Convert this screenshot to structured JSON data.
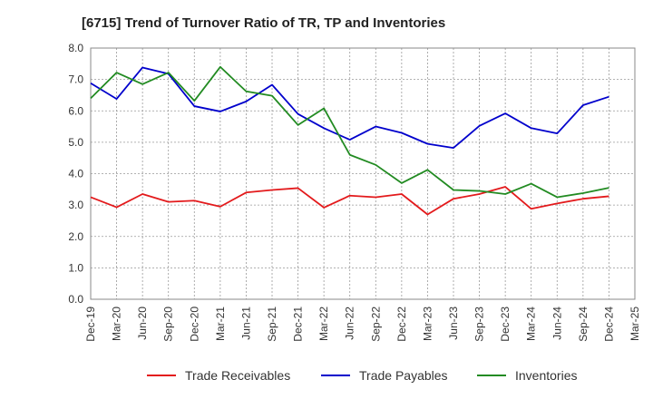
{
  "chart_data": {
    "type": "line",
    "title": "[6715]  Trend of Turnover Ratio of TR, TP and Inventories",
    "xlabel": "",
    "ylabel": "",
    "ylim": [
      0,
      8
    ],
    "yticks": [
      "0.0",
      "1.0",
      "2.0",
      "3.0",
      "4.0",
      "5.0",
      "6.0",
      "7.0",
      "8.0"
    ],
    "x_tick_labels": [
      "Dec-19",
      "Mar-20",
      "Jun-20",
      "Sep-20",
      "Dec-20",
      "Mar-21",
      "Jun-21",
      "Sep-21",
      "Dec-21",
      "Mar-22",
      "Jun-22",
      "Sep-22",
      "Dec-22",
      "Mar-23",
      "Jun-23",
      "Sep-23",
      "Dec-23",
      "Mar-24",
      "Jun-24",
      "Sep-24",
      "Dec-24",
      "Mar-25"
    ],
    "x": [
      "Dec-19",
      "Mar-20",
      "Jun-20",
      "Sep-20",
      "Dec-20",
      "Mar-21",
      "Jun-21",
      "Sep-21",
      "Dec-21",
      "Mar-22",
      "Jun-22",
      "Sep-22",
      "Dec-22",
      "Mar-23",
      "Jun-23",
      "Sep-23",
      "Dec-23",
      "Mar-24",
      "Jun-24",
      "Sep-24",
      "Dec-24"
    ],
    "grid": true,
    "legend_position": "bottom",
    "series": [
      {
        "name": "Trade Receivables",
        "color": "#e31a1c",
        "values": [
          3.25,
          2.93,
          3.35,
          3.1,
          3.14,
          2.95,
          3.4,
          3.48,
          3.54,
          2.92,
          3.3,
          3.25,
          3.35,
          2.7,
          3.2,
          3.35,
          3.58,
          2.88,
          3.05,
          3.2,
          3.28
        ]
      },
      {
        "name": "Trade Payables",
        "color": "#0000cc",
        "values": [
          6.88,
          6.38,
          7.38,
          7.18,
          6.15,
          5.98,
          6.3,
          6.83,
          5.9,
          5.45,
          5.08,
          5.5,
          5.3,
          4.95,
          4.82,
          5.52,
          5.92,
          5.45,
          5.28,
          6.18,
          6.45
        ]
      },
      {
        "name": "Inventories",
        "color": "#228b22",
        "values": [
          6.4,
          7.22,
          6.85,
          7.22,
          6.32,
          7.4,
          6.62,
          6.48,
          5.55,
          6.08,
          4.6,
          4.28,
          3.7,
          4.12,
          3.48,
          3.45,
          3.35,
          3.68,
          3.25,
          3.38,
          3.55
        ]
      }
    ]
  }
}
